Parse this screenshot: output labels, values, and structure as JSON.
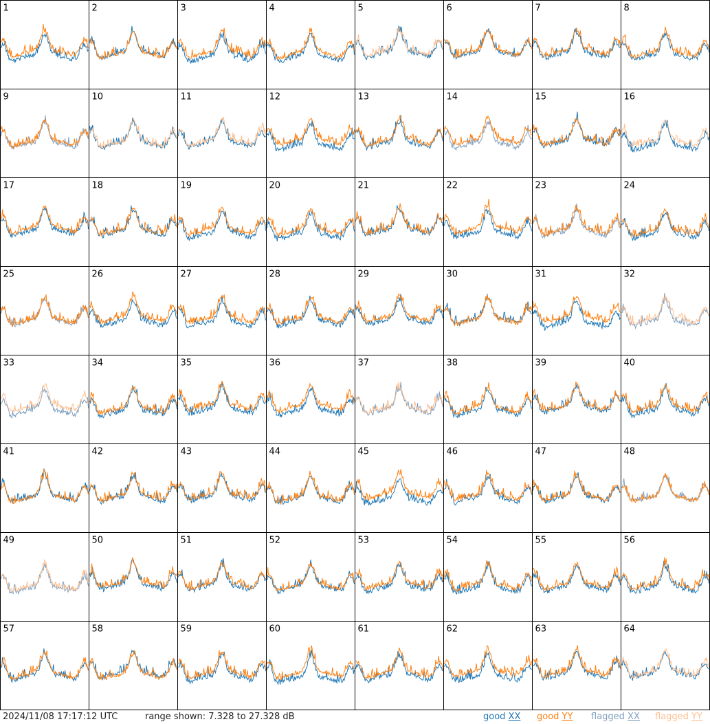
{
  "footer": {
    "timestamp": "2024/11/08 17:17:12 UTC",
    "range_text": "range shown: 7.328 to 27.328 dB",
    "legend": [
      {
        "label": "good XX",
        "prefix": "good ",
        "mark": "XX",
        "color": "#1f77b4"
      },
      {
        "label": "good YY",
        "prefix": "good ",
        "mark": "YY",
        "color": "#ff7f0e"
      },
      {
        "label": "flagged XX",
        "prefix": "flagged ",
        "mark": "XX",
        "color": "#7f9fbf"
      },
      {
        "label": "flagged YY",
        "prefix": "flagged ",
        "mark": "YY",
        "color": "#ffbf8f"
      }
    ]
  },
  "chart_data": {
    "type": "line",
    "grid": "8x8 small multiples",
    "ylim": [
      7.328,
      27.328
    ],
    "yunit": "dB",
    "panels": [
      {
        "id": "1",
        "xx": "good",
        "yy": "good"
      },
      {
        "id": "2",
        "xx": "good",
        "yy": "good"
      },
      {
        "id": "3",
        "xx": "good",
        "yy": "good"
      },
      {
        "id": "4",
        "xx": "good",
        "yy": "good"
      },
      {
        "id": "5",
        "xx": "good",
        "yy": "flagged"
      },
      {
        "id": "6",
        "xx": "good",
        "yy": "good"
      },
      {
        "id": "7",
        "xx": "good",
        "yy": "good"
      },
      {
        "id": "8",
        "xx": "good",
        "yy": "good"
      },
      {
        "id": "9",
        "xx": "flagged",
        "yy": "good"
      },
      {
        "id": "10",
        "xx": "good",
        "yy": "flagged"
      },
      {
        "id": "11",
        "xx": "good",
        "yy": "flagged"
      },
      {
        "id": "12",
        "xx": "good",
        "yy": "good"
      },
      {
        "id": "13",
        "xx": "good",
        "yy": "good"
      },
      {
        "id": "14",
        "xx": "flagged",
        "yy": "good"
      },
      {
        "id": "15",
        "xx": "good",
        "yy": "good"
      },
      {
        "id": "16",
        "xx": "good",
        "yy": "flagged"
      },
      {
        "id": "17",
        "xx": "good",
        "yy": "good"
      },
      {
        "id": "18",
        "xx": "good",
        "yy": "good"
      },
      {
        "id": "19",
        "xx": "good",
        "yy": "good"
      },
      {
        "id": "20",
        "xx": "good",
        "yy": "good"
      },
      {
        "id": "21",
        "xx": "good",
        "yy": "good"
      },
      {
        "id": "22",
        "xx": "good",
        "yy": "good"
      },
      {
        "id": "23",
        "xx": "flagged",
        "yy": "good"
      },
      {
        "id": "24",
        "xx": "good",
        "yy": "good"
      },
      {
        "id": "25",
        "xx": "flagged",
        "yy": "good"
      },
      {
        "id": "26",
        "xx": "good",
        "yy": "good"
      },
      {
        "id": "27",
        "xx": "good",
        "yy": "good"
      },
      {
        "id": "28",
        "xx": "good",
        "yy": "good"
      },
      {
        "id": "29",
        "xx": "good",
        "yy": "good"
      },
      {
        "id": "30",
        "xx": "good",
        "yy": "good"
      },
      {
        "id": "31",
        "xx": "good",
        "yy": "good"
      },
      {
        "id": "32",
        "xx": "flagged",
        "yy": "flagged"
      },
      {
        "id": "33",
        "xx": "flagged",
        "yy": "flagged"
      },
      {
        "id": "34",
        "xx": "good",
        "yy": "good"
      },
      {
        "id": "35",
        "xx": "good",
        "yy": "good"
      },
      {
        "id": "36",
        "xx": "good",
        "yy": "good"
      },
      {
        "id": "37",
        "xx": "flagged",
        "yy": "flagged"
      },
      {
        "id": "38",
        "xx": "good",
        "yy": "good"
      },
      {
        "id": "39",
        "xx": "good",
        "yy": "good"
      },
      {
        "id": "40",
        "xx": "good",
        "yy": "good"
      },
      {
        "id": "41",
        "xx": "good",
        "yy": "good"
      },
      {
        "id": "42",
        "xx": "good",
        "yy": "good"
      },
      {
        "id": "43",
        "xx": "good",
        "yy": "good"
      },
      {
        "id": "44",
        "xx": "good",
        "yy": "good"
      },
      {
        "id": "45",
        "xx": "good",
        "yy": "good"
      },
      {
        "id": "46",
        "xx": "good",
        "yy": "good"
      },
      {
        "id": "47",
        "xx": "good",
        "yy": "good"
      },
      {
        "id": "48",
        "xx": "flagged",
        "yy": "good"
      },
      {
        "id": "49",
        "xx": "flagged",
        "yy": "flagged"
      },
      {
        "id": "50",
        "xx": "good",
        "yy": "good"
      },
      {
        "id": "51",
        "xx": "good",
        "yy": "good"
      },
      {
        "id": "52",
        "xx": "good",
        "yy": "good"
      },
      {
        "id": "53",
        "xx": "good",
        "yy": "good"
      },
      {
        "id": "54",
        "xx": "good",
        "yy": "good"
      },
      {
        "id": "55",
        "xx": "good",
        "yy": "good"
      },
      {
        "id": "56",
        "xx": "good",
        "yy": "good"
      },
      {
        "id": "57",
        "xx": "good",
        "yy": "good"
      },
      {
        "id": "58",
        "xx": "good",
        "yy": "good"
      },
      {
        "id": "59",
        "xx": "good",
        "yy": "good"
      },
      {
        "id": "60",
        "xx": "good",
        "yy": "good"
      },
      {
        "id": "61",
        "xx": "good",
        "yy": "good"
      },
      {
        "id": "62",
        "xx": "good",
        "yy": "good"
      },
      {
        "id": "63",
        "xx": "good",
        "yy": "good"
      },
      {
        "id": "64",
        "xx": "good",
        "yy": "flagged"
      }
    ]
  }
}
